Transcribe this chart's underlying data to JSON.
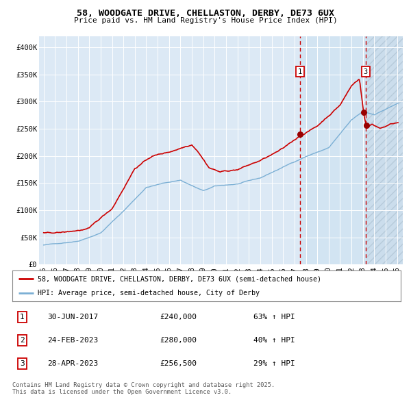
{
  "title": "58, WOODGATE DRIVE, CHELLASTON, DERBY, DE73 6UX",
  "subtitle": "Price paid vs. HM Land Registry's House Price Index (HPI)",
  "line1_label": "58, WOODGATE DRIVE, CHELLASTON, DERBY, DE73 6UX (semi-detached house)",
  "line2_label": "HPI: Average price, semi-detached house, City of Derby",
  "line1_color": "#cc0000",
  "line2_color": "#7bafd4",
  "marker_color": "#990000",
  "vline_color": "#cc0000",
  "bg_color": "#dce9f5",
  "hatch_color": "#c8d8ea",
  "ylim": [
    0,
    420000
  ],
  "yticks": [
    0,
    50000,
    100000,
    150000,
    200000,
    250000,
    300000,
    350000,
    400000
  ],
  "ytick_labels": [
    "£0",
    "£50K",
    "£100K",
    "£150K",
    "£200K",
    "£250K",
    "£300K",
    "£350K",
    "£400K"
  ],
  "xstart_year": 1995,
  "xend_year": 2026,
  "sale1_price": 240000,
  "sale2_price": 280000,
  "sale3_price": 256500,
  "vline1_year": 2017.5,
  "vline2_year": 2023.25,
  "table_rows": [
    {
      "num": "1",
      "date": "30-JUN-2017",
      "price": "£240,000",
      "change": "63% ↑ HPI"
    },
    {
      "num": "2",
      "date": "24-FEB-2023",
      "price": "£280,000",
      "change": "40% ↑ HPI"
    },
    {
      "num": "3",
      "date": "28-APR-2023",
      "price": "£256,500",
      "change": "29% ↑ HPI"
    }
  ],
  "footer": "Contains HM Land Registry data © Crown copyright and database right 2025.\nThis data is licensed under the Open Government Licence v3.0."
}
